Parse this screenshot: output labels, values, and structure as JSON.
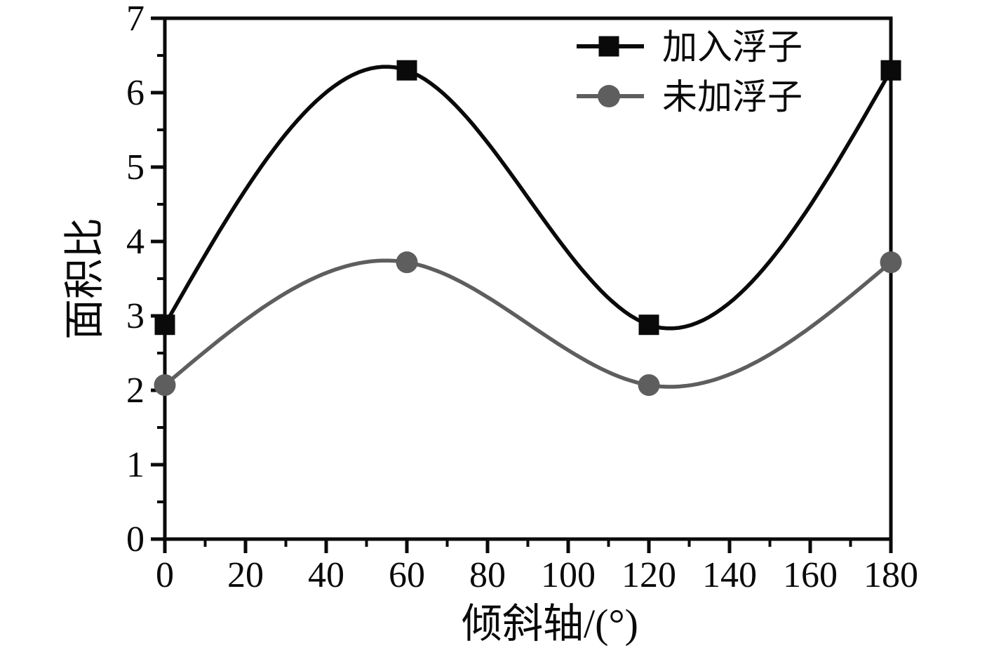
{
  "page": {
    "background": "#ffffff"
  },
  "chart_data": {
    "type": "line",
    "title": "",
    "xlabel": "倾斜轴/(°)",
    "ylabel": "面积比",
    "x": [
      0,
      60,
      120,
      180
    ],
    "series": [
      {
        "name": "加入浮子",
        "values": [
          2.88,
          6.3,
          2.88,
          6.3
        ],
        "color": "#0a0a0a",
        "marker": "square"
      },
      {
        "name": "未加浮子",
        "values": [
          2.07,
          3.72,
          2.07,
          3.72
        ],
        "color": "#5e5e5e",
        "marker": "circle"
      }
    ],
    "xlim": [
      0,
      180
    ],
    "ylim": [
      0,
      7
    ],
    "x_major_ticks": [
      0,
      20,
      40,
      60,
      80,
      100,
      120,
      140,
      160,
      180
    ],
    "x_minor_step": 10,
    "y_major_ticks": [
      0,
      1,
      2,
      3,
      4,
      5,
      6,
      7
    ],
    "y_minor_step": 0.5,
    "grid": false,
    "legend_position": "top-right",
    "curve_style": "natural-spline",
    "frame": "full-box",
    "frame_color": "#0a0a0a"
  }
}
